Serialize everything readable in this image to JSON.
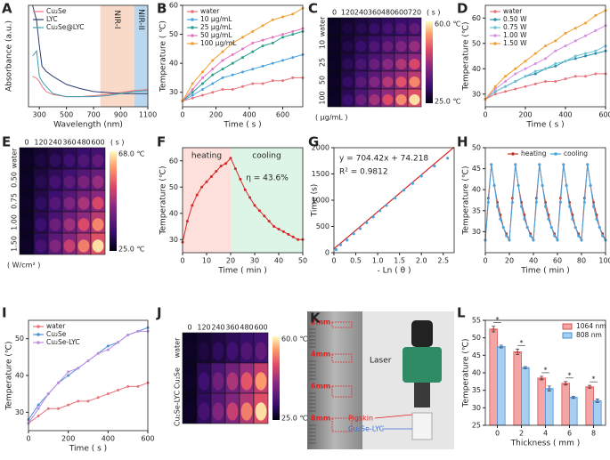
{
  "chart_data": [
    {
      "type": "line",
      "label": "A",
      "xlabel": "Wavelength (nm)",
      "ylabel": "Absorbance (a.u.)",
      "x": [
        250,
        280,
        300,
        320,
        350,
        400,
        500,
        600,
        700,
        800,
        900,
        1000,
        1100
      ],
      "xlim": [
        220,
        1100
      ],
      "xticks": [
        300,
        500,
        700,
        900,
        1100
      ],
      "ylim": [
        0,
        1
      ],
      "yticks": [],
      "markers": false,
      "legend": "upper left",
      "regions": [
        {
          "label": "NIR-I",
          "from": 750,
          "to": 1000,
          "color": "#f9d9c8"
        },
        {
          "label": "NIR-II",
          "from": 1000,
          "to": 1100,
          "color": "#b9d7ee"
        }
      ],
      "series": [
        {
          "name": "Cu₂Se",
          "color": "#e8747c",
          "values": [
            0.3,
            0.28,
            0.25,
            0.2,
            0.15,
            0.12,
            0.1,
            0.1,
            0.11,
            0.12,
            0.14,
            0.16,
            0.17
          ]
        },
        {
          "name": "LYC",
          "color": "#2c3e70",
          "values": [
            1.0,
            0.85,
            0.6,
            0.4,
            0.35,
            0.3,
            0.22,
            0.18,
            0.15,
            0.14,
            0.13,
            0.13,
            0.13
          ]
        },
        {
          "name": "Cu₂Se@LYC",
          "color": "#3a9fb5",
          "values": [
            0.5,
            0.55,
            0.3,
            0.25,
            0.2,
            0.13,
            0.1,
            0.1,
            0.1,
            0.11,
            0.13,
            0.15,
            0.16
          ]
        }
      ]
    },
    {
      "type": "line",
      "label": "B",
      "xlabel": "Time ( s )",
      "ylabel": "Temperature ( ℃)",
      "x": [
        0,
        60,
        120,
        180,
        240,
        300,
        360,
        420,
        480,
        540,
        600,
        660,
        720
      ],
      "xlim": [
        0,
        720
      ],
      "xticks": [
        0,
        200,
        400,
        600
      ],
      "ylim": [
        25,
        60
      ],
      "yticks": [
        30,
        40,
        50,
        60
      ],
      "markers": true,
      "legend": "upper left",
      "series": [
        {
          "name": "water",
          "color": "#e8747c",
          "values": [
            27,
            28,
            29,
            30,
            31,
            31,
            32,
            33,
            33,
            34,
            34,
            35,
            35
          ]
        },
        {
          "name": "10 μg/mL",
          "color": "#4aa3df",
          "values": [
            27,
            29,
            31,
            33,
            35,
            36,
            37,
            38,
            39,
            40,
            41,
            42,
            43
          ]
        },
        {
          "name": "25 μg/mL",
          "color": "#2a9d8f",
          "values": [
            27,
            30,
            33,
            36,
            38,
            40,
            42,
            44,
            46,
            47,
            49,
            50,
            51
          ]
        },
        {
          "name": "50 μg/mL",
          "color": "#e377c2",
          "values": [
            27,
            31,
            35,
            38,
            41,
            43,
            45,
            47,
            48,
            49,
            50,
            51,
            52
          ]
        },
        {
          "name": "100 μg/mL",
          "color": "#f0a030",
          "values": [
            27,
            33,
            37,
            41,
            44,
            47,
            49,
            51,
            53,
            55,
            56,
            57,
            59
          ]
        }
      ]
    },
    {
      "type": "thermal",
      "label": "C",
      "columns": [
        0,
        120,
        240,
        360,
        480,
        600,
        720
      ],
      "time_unit": "( s )",
      "rows": [
        "water",
        10,
        25,
        50,
        100
      ],
      "row_unit": "( μg/mL )",
      "max_label": "60.0 ℃",
      "min_label": "25.0 ℃"
    },
    {
      "type": "line",
      "label": "D",
      "xlabel": "Time ( s )",
      "ylabel": "Temperature (℃)",
      "x": [
        0,
        50,
        100,
        150,
        200,
        250,
        300,
        350,
        400,
        450,
        500,
        550,
        600
      ],
      "xlim": [
        0,
        600
      ],
      "xticks": [
        0,
        200,
        400,
        600
      ],
      "ylim": [
        25,
        65
      ],
      "yticks": [
        30,
        40,
        50,
        60
      ],
      "markers": true,
      "legend": "upper left",
      "series": [
        {
          "name": "water",
          "color": "#e8747c",
          "values": [
            28,
            30,
            31,
            32,
            33,
            34,
            35,
            35,
            36,
            37,
            37,
            38,
            38
          ]
        },
        {
          "name": "0.50 W",
          "color": "#2b8fb0",
          "values": [
            28,
            31,
            33,
            35,
            37,
            38,
            40,
            41,
            43,
            44,
            45,
            46,
            47
          ]
        },
        {
          "name": "0.75 W",
          "color": "#6cc3d5",
          "values": [
            28,
            31,
            33,
            35,
            37,
            39,
            40,
            42,
            43,
            45,
            46,
            47,
            49
          ]
        },
        {
          "name": "1.00 W",
          "color": "#d98ee6",
          "values": [
            28,
            32,
            35,
            38,
            40,
            42,
            44,
            47,
            49,
            51,
            53,
            55,
            57
          ]
        },
        {
          "name": "1.50 W",
          "color": "#f0a030",
          "values": [
            28,
            33,
            37,
            40,
            43,
            46,
            49,
            51,
            54,
            56,
            58,
            61,
            63
          ]
        }
      ]
    },
    {
      "type": "thermal",
      "label": "E",
      "columns": [
        0,
        120,
        240,
        360,
        480,
        600
      ],
      "time_unit": "( s )",
      "rows": [
        "water",
        "0.50",
        "0.75",
        "1.00",
        "1.50"
      ],
      "row_unit": "( W/cm² )",
      "max_label": "68.0 ℃",
      "min_label": "25.0 ℃"
    },
    {
      "type": "line",
      "label": "F",
      "xlabel": "Time ( min )",
      "ylabel": "Temperature (℃)",
      "x": [
        0,
        2,
        4,
        6,
        8,
        10,
        12,
        14,
        16,
        18,
        20,
        22,
        24,
        26,
        28,
        30,
        32,
        34,
        36,
        38,
        40,
        42,
        44,
        46,
        48,
        50
      ],
      "values": [
        29,
        37,
        43,
        47,
        50,
        52,
        54,
        56,
        58,
        59,
        61,
        57,
        53,
        49,
        46,
        43,
        41,
        39,
        37,
        35,
        34,
        33,
        32,
        31,
        30,
        30
      ],
      "color": "#d62728",
      "markers": true,
      "xlim": [
        0,
        50
      ],
      "xticks": [
        0,
        10,
        20,
        30,
        40,
        50
      ],
      "ylim": [
        25,
        65
      ],
      "yticks": [
        30,
        40,
        50,
        60
      ],
      "regions": [
        {
          "label": "heating",
          "from": 0,
          "to": 20,
          "color": "#fde0dc"
        },
        {
          "label": "cooling",
          "from": 20,
          "to": 50,
          "color": "#ddf5e6"
        }
      ],
      "annotation": "η = 43.6%"
    },
    {
      "type": "scatter",
      "label": "G",
      "xlabel": "- Ln ( θ )",
      "ylabel": "Time (s)",
      "x": [
        0.05,
        0.15,
        0.3,
        0.45,
        0.6,
        0.75,
        0.9,
        1.05,
        1.2,
        1.4,
        1.6,
        1.8,
        2.0,
        2.3,
        2.6
      ],
      "values": [
        60,
        150,
        240,
        360,
        460,
        570,
        680,
        800,
        900,
        1040,
        1190,
        1320,
        1460,
        1650,
        1800
      ],
      "color": "#4aa3df",
      "xlim": [
        0,
        2.75
      ],
      "xticks": [
        0,
        0.5,
        {
          "value": 1,
          "label": "1.0"
        },
        1.5,
        {
          "value": 2,
          "label": "2.0"
        },
        2.5
      ],
      "ylim": [
        0,
        2000
      ],
      "yticks": [
        0,
        500,
        1000,
        1500,
        2000
      ],
      "fit": {
        "label": "y = 704.42x + 74.218",
        "slope": 704.42,
        "intercept": 74.218,
        "r2_label": "R² = 0.9812",
        "color": "#d62728"
      }
    },
    {
      "type": "line",
      "label": "H",
      "xlabel": "Time ( min )",
      "ylabel": "Temperature (℃)",
      "x": [
        0,
        2.5,
        5,
        7.5,
        10,
        12.5,
        15,
        17.5,
        20,
        22.5,
        25,
        27.5,
        30,
        32.5,
        35,
        37.5,
        40,
        42.5,
        45,
        47.5,
        50,
        52.5,
        55,
        57.5,
        60,
        62.5,
        65,
        67.5,
        70,
        72.5,
        75,
        77.5,
        80,
        82.5,
        85,
        87.5,
        90,
        92.5,
        95,
        97.5,
        100
      ],
      "xlim": [
        0,
        100
      ],
      "xticks": [
        0,
        20,
        40,
        60,
        80,
        100
      ],
      "ylim": [
        25,
        50
      ],
      "yticks": [
        30,
        35,
        40,
        45,
        50
      ],
      "markers": true,
      "legend": "upper center",
      "series": [
        {
          "name": "heating",
          "color": "#c0392b",
          "values": [
            28,
            38,
            46,
            41,
            37,
            34,
            31,
            29.5,
            28,
            38,
            46,
            41,
            37,
            34,
            31,
            29.5,
            28,
            38,
            46,
            41,
            37,
            34,
            31,
            29.5,
            28,
            38,
            46,
            41,
            37,
            34,
            31,
            29.5,
            28,
            38,
            46,
            41,
            37,
            34,
            31,
            29.5,
            28
          ]
        },
        {
          "name": "cooling",
          "color": "#4aa3df",
          "values": [
            28,
            37,
            46,
            41,
            36,
            33,
            31,
            29,
            28,
            37,
            46,
            41,
            36,
            33,
            31,
            29,
            28,
            37,
            46,
            41,
            36,
            33,
            31,
            29,
            28,
            37,
            46,
            41,
            36,
            33,
            31,
            29,
            28,
            37,
            46,
            41,
            36,
            33,
            31,
            29,
            28
          ]
        }
      ]
    },
    {
      "type": "line",
      "label": "I",
      "xlabel": "Time ( s )",
      "ylabel": "Temperature (℃)",
      "x": [
        0,
        50,
        100,
        150,
        200,
        250,
        300,
        350,
        400,
        450,
        500,
        550,
        600
      ],
      "xlim": [
        0,
        600
      ],
      "xticks": [
        0,
        200,
        400,
        600
      ],
      "ylim": [
        25,
        55
      ],
      "yticks": [
        30,
        40,
        50
      ],
      "markers": true,
      "legend": "upper left",
      "series": [
        {
          "name": "water",
          "color": "#e8747c",
          "values": [
            27,
            29,
            31,
            31,
            32,
            33,
            33,
            34,
            35,
            36,
            37,
            37,
            38
          ]
        },
        {
          "name": "Cu₂Se",
          "color": "#4a90d9",
          "values": [
            28,
            32,
            35,
            38,
            40,
            42,
            44,
            46,
            48,
            49,
            51,
            52,
            53
          ]
        },
        {
          "name": "Cu₂Se-LYC",
          "color": "#c08ee0",
          "values": [
            27,
            31,
            35,
            38,
            41,
            42,
            44,
            46,
            47,
            49,
            51,
            52,
            52
          ]
        }
      ]
    },
    {
      "type": "thermal",
      "label": "J",
      "columns": [
        0,
        120,
        240,
        360,
        480,
        600
      ],
      "rows": [
        "water",
        "Cu₂Se",
        "Cu₂Se-LYC"
      ],
      "max_label": "60.0 ℃",
      "min_label": "25.0 ℃"
    },
    {
      "type": "photo",
      "label": "K",
      "scale_labels": [
        "2mm",
        "4mm",
        "6mm",
        "8mm"
      ],
      "laser": "Laser",
      "pigskin": "Pigskin",
      "sample": "Cu₂Se-LYC"
    },
    {
      "type": "bar",
      "label": "L",
      "xlabel": "Thickness ( mm )",
      "ylabel": "Temperature (℃)",
      "categories": [
        "0",
        "2",
        "4",
        "6",
        "8"
      ],
      "ylim": [
        25,
        55
      ],
      "yticks": [
        25,
        30,
        35,
        40,
        45,
        50,
        55
      ],
      "legend": "upper right",
      "significance": [
        "*",
        "*",
        "*",
        "*",
        "*"
      ],
      "series": [
        {
          "name": "1064 nm",
          "color": "#f4a6a6",
          "edge": "#d9534f",
          "values": [
            52.5,
            46,
            38.5,
            37,
            36
          ],
          "errors": [
            0.8,
            0.8,
            0.5,
            0.5,
            0.4
          ]
        },
        {
          "name": "808 nm",
          "color": "#a8cff0",
          "edge": "#4a90d9",
          "values": [
            47.5,
            41.5,
            35.5,
            33,
            32
          ],
          "errors": [
            0.4,
            0.3,
            0.7,
            0.3,
            0.5
          ]
        }
      ]
    }
  ]
}
